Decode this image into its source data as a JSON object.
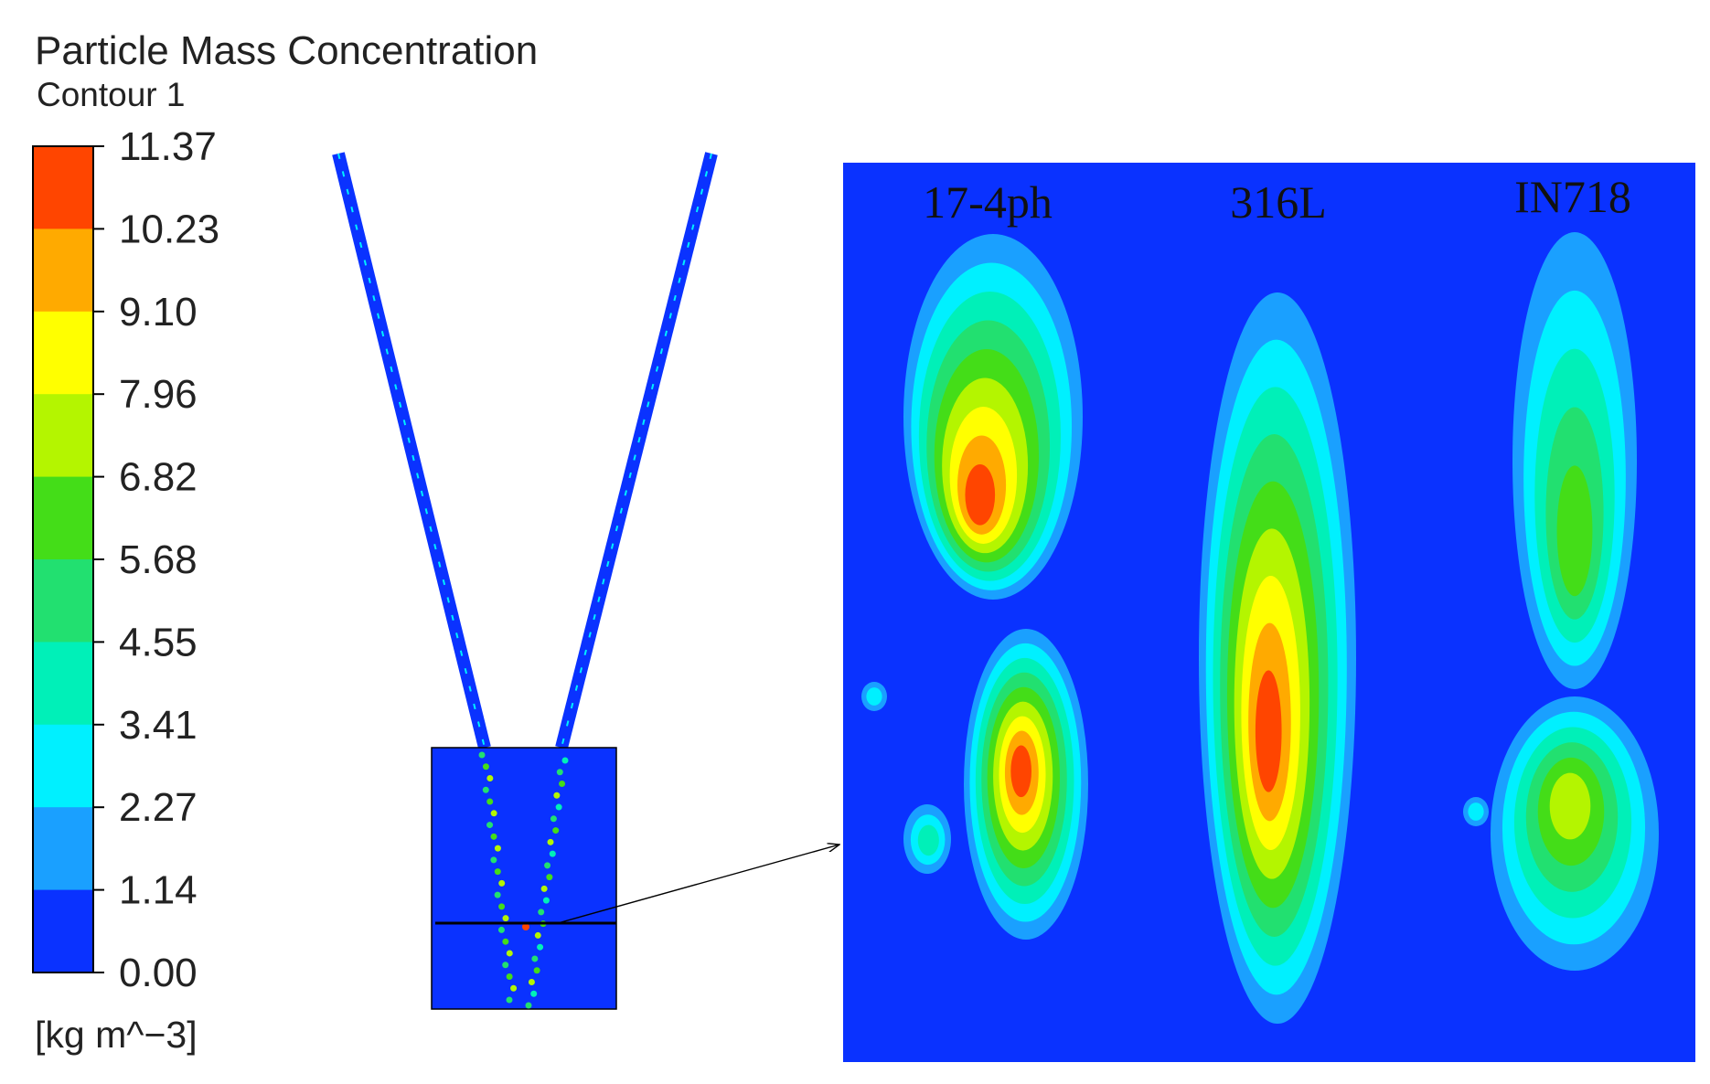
{
  "title": "Particle Mass Concentration",
  "subtitle": "Contour 1",
  "colorbar": {
    "ticks": [
      "11.37",
      "10.23",
      "9.10",
      "7.96",
      "6.82",
      "5.68",
      "4.55",
      "3.41",
      "2.27",
      "1.14",
      "0.00"
    ],
    "unit": "[kg m^−3]",
    "colors": [
      "#ff4500",
      "#ffaa00",
      "#ffff00",
      "#b4f500",
      "#44dd18",
      "#22e070",
      "#00f0b8",
      "#00f0ff",
      "#1aa0ff",
      "#0a32ff"
    ]
  },
  "panel_labels": [
    "17-4ph",
    "316L",
    "IN718"
  ]
}
